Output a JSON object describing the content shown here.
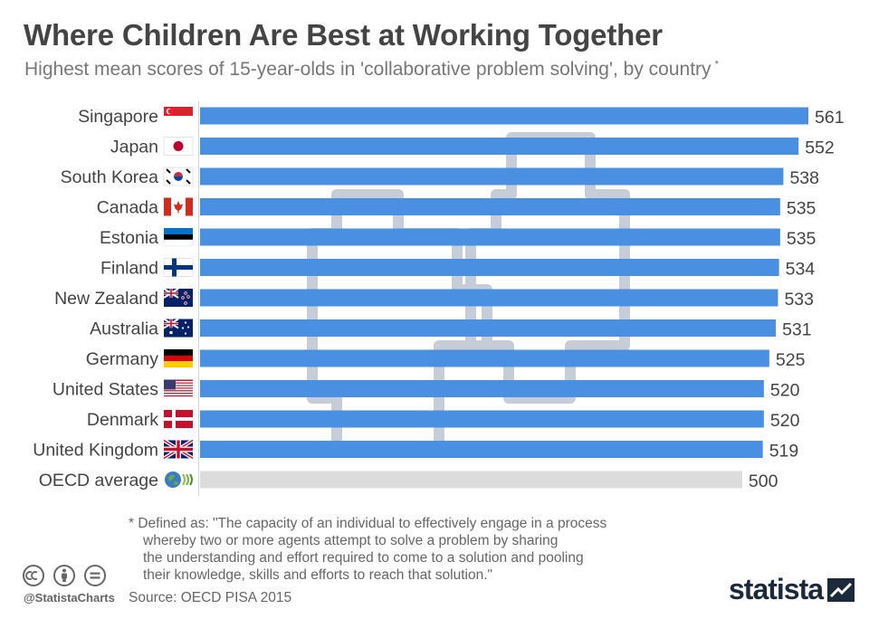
{
  "header": {
    "title": "Where Children Are Best at Working Together",
    "subtitle": "Highest mean scores of 15-year-olds in 'collaborative problem solving', by country",
    "subtitle_mark": "*"
  },
  "chart_data": {
    "type": "bar",
    "orientation": "horizontal",
    "categories": [
      "Singapore",
      "Japan",
      "South Korea",
      "Canada",
      "Estonia",
      "Finland",
      "New Zealand",
      "Australia",
      "Germany",
      "United States",
      "Denmark",
      "United Kingdom",
      "OECD average"
    ],
    "values": [
      561,
      552,
      538,
      535,
      535,
      534,
      533,
      531,
      525,
      520,
      520,
      519,
      500
    ],
    "flags": [
      "singapore-flag-icon",
      "japan-flag-icon",
      "south-korea-flag-icon",
      "canada-flag-icon",
      "estonia-flag-icon",
      "finland-flag-icon",
      "new-zealand-flag-icon",
      "australia-flag-icon",
      "germany-flag-icon",
      "united-states-flag-icon",
      "denmark-flag-icon",
      "united-kingdom-flag-icon",
      "oecd-logo-icon"
    ],
    "xlim": [
      0,
      561
    ],
    "grid": false,
    "legend": "none",
    "colors": {
      "bar": "#4a90e2",
      "average_bar": "#dcdcdc",
      "watermark": "#c7cdd6"
    }
  },
  "footnote": {
    "lines": [
      "* Defined as: \"The capacity of an individual to effectively engage in a process",
      "whereby two or more agents attempt to solve a problem by sharing",
      "the understanding and effort required to come to a solution and pooling",
      "their knowledge, skills and efforts to reach that solution.\""
    ]
  },
  "footer": {
    "source": "Source: OECD PISA 2015",
    "handle": "@StatistaCharts",
    "logo": "statista"
  }
}
